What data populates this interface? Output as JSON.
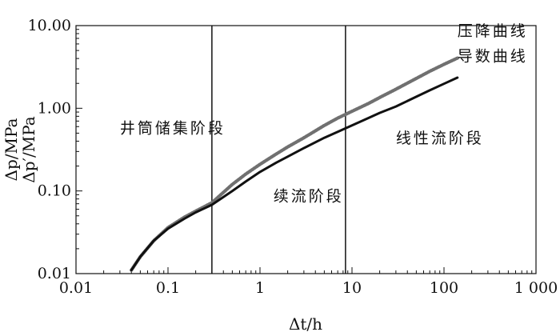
{
  "chart_data": {
    "type": "line",
    "x_scale": "log",
    "y_scale": "log",
    "xlim": [
      0.01,
      1000
    ],
    "ylim": [
      0.01,
      10
    ],
    "xlabel": "Δt/h",
    "ylabel_top": "Δp/MPa",
    "ylabel_bottom": "Δp′/MPa",
    "x_ticks": [
      {
        "value": 0.01,
        "label": "0.01"
      },
      {
        "value": 0.1,
        "label": "0.1"
      },
      {
        "value": 1,
        "label": "1"
      },
      {
        "value": 10,
        "label": "10"
      },
      {
        "value": 100,
        "label": "100"
      },
      {
        "value": 1000,
        "label": "1 000"
      }
    ],
    "y_ticks": [
      {
        "value": 0.01,
        "label": "0.01"
      },
      {
        "value": 0.1,
        "label": "0.10"
      },
      {
        "value": 1,
        "label": "1.00"
      },
      {
        "value": 10,
        "label": "10.00"
      }
    ],
    "vlines": [
      0.3,
      8.5
    ],
    "regions": [
      {
        "label": "井筒储集阶段",
        "x": 0.03,
        "y": 0.5
      },
      {
        "label": "续流阶段",
        "x": 1.4,
        "y": 0.075
      },
      {
        "label": "线性流阶段",
        "x": 30,
        "y": 0.38
      }
    ],
    "series": [
      {
        "name": "压降曲线",
        "color": "#707070",
        "x": [
          0.04,
          0.05,
          0.07,
          0.1,
          0.15,
          0.2,
          0.3,
          0.5,
          0.7,
          1,
          1.5,
          2,
          3,
          5,
          7,
          10,
          15,
          20,
          30,
          50,
          70,
          100,
          140
        ],
        "y": [
          0.011,
          0.016,
          0.025,
          0.036,
          0.048,
          0.057,
          0.072,
          0.12,
          0.16,
          0.21,
          0.28,
          0.34,
          0.44,
          0.62,
          0.76,
          0.92,
          1.14,
          1.35,
          1.7,
          2.3,
          2.8,
          3.4,
          4.05
        ]
      },
      {
        "name": "导数曲线",
        "color": "#111111",
        "x": [
          0.04,
          0.05,
          0.07,
          0.1,
          0.15,
          0.2,
          0.3,
          0.5,
          0.7,
          1,
          1.5,
          2,
          3,
          5,
          7,
          10,
          15,
          20,
          30,
          50,
          70,
          100,
          140
        ],
        "y": [
          0.011,
          0.016,
          0.025,
          0.035,
          0.046,
          0.055,
          0.068,
          0.1,
          0.13,
          0.17,
          0.22,
          0.26,
          0.33,
          0.44,
          0.52,
          0.62,
          0.76,
          0.88,
          1.05,
          1.38,
          1.65,
          1.98,
          2.35
        ]
      }
    ],
    "legend_labels": [
      {
        "text": "压降曲线",
        "x": 140,
        "y": 7.5
      },
      {
        "text": "导数曲线",
        "x": 140,
        "y": 3.7
      }
    ]
  }
}
